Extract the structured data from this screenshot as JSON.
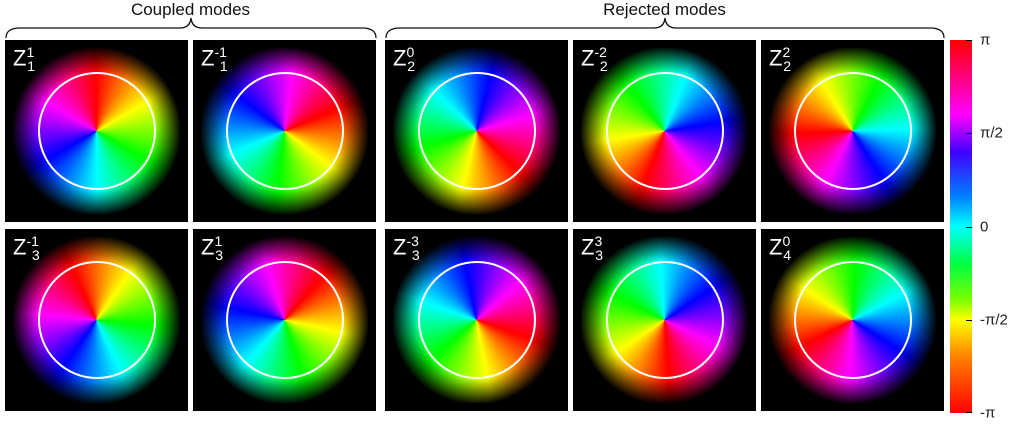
{
  "groups": [
    {
      "label": "Coupled modes"
    },
    {
      "label": "Rejected modes"
    }
  ],
  "panels": [
    {
      "base": "Z",
      "sub": "1",
      "sup": "1"
    },
    {
      "base": "Z",
      "sub": "1",
      "sup": "-1"
    },
    {
      "base": "Z",
      "sub": "2",
      "sup": "0"
    },
    {
      "base": "Z",
      "sub": "2",
      "sup": "-2"
    },
    {
      "base": "Z",
      "sub": "2",
      "sup": "2"
    },
    {
      "base": "Z",
      "sub": "3",
      "sup": "-1"
    },
    {
      "base": "Z",
      "sub": "3",
      "sup": "1"
    },
    {
      "base": "Z",
      "sub": "3",
      "sup": "-3"
    },
    {
      "base": "Z",
      "sub": "3",
      "sup": "3"
    },
    {
      "base": "Z",
      "sub": "4",
      "sup": "0"
    }
  ],
  "colorbar": {
    "lim": [
      -3.1416,
      3.1416
    ],
    "ticks": [
      {
        "value": 3.1416,
        "label": "π"
      },
      {
        "value": 1.5708,
        "label": "π/2"
      },
      0,
      {
        "value": -1.5708,
        "label": "-π/2"
      },
      {
        "value": -3.1416,
        "label": "-π"
      }
    ]
  }
}
